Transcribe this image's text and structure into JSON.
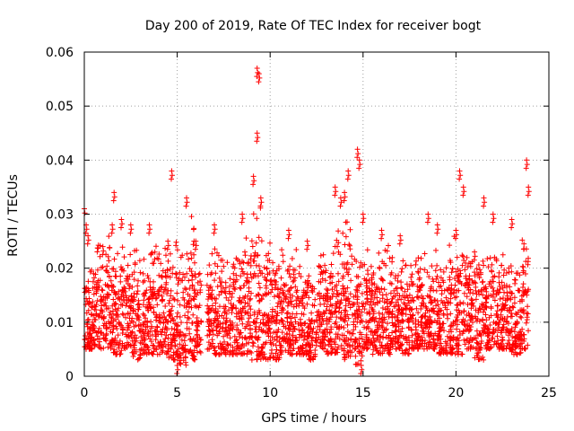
{
  "chart_data": {
    "type": "scatter",
    "title": "Day 200 of 2019, Rate Of TEC Index for receiver bogt",
    "xlabel": "GPS time / hours",
    "ylabel": "ROTI / TECUs",
    "xlim": [
      0,
      25
    ],
    "ylim": [
      0,
      0.06
    ],
    "x_ticks": [
      "0",
      "5",
      "10",
      "15",
      "20",
      "25"
    ],
    "y_ticks": [
      "0",
      "0.01",
      "0.02",
      "0.03",
      "0.04",
      "0.05",
      "0.06"
    ],
    "grid": true,
    "marker": "plus",
    "color": "#ff0000",
    "series": [
      {
        "approx_points": [
          [
            0.0,
            0.031
          ],
          [
            0.1,
            0.028
          ],
          [
            0.2,
            0.026
          ],
          [
            0.3,
            0.007
          ],
          [
            0.5,
            0.019
          ],
          [
            1.0,
            0.024
          ],
          [
            1.5,
            0.028
          ],
          [
            1.6,
            0.034
          ],
          [
            2.0,
            0.029
          ],
          [
            2.5,
            0.028
          ],
          [
            3.5,
            0.028
          ],
          [
            4.5,
            0.025
          ],
          [
            4.7,
            0.038
          ],
          [
            5.0,
            0.002
          ],
          [
            5.5,
            0.033
          ],
          [
            6.0,
            0.025
          ],
          [
            7.0,
            0.028
          ],
          [
            8.5,
            0.03
          ],
          [
            9.1,
            0.037
          ],
          [
            9.3,
            0.057
          ],
          [
            9.4,
            0.056
          ],
          [
            9.3,
            0.045
          ],
          [
            9.5,
            0.033
          ],
          [
            11.0,
            0.027
          ],
          [
            12.0,
            0.025
          ],
          [
            13.5,
            0.035
          ],
          [
            13.8,
            0.033
          ],
          [
            14.0,
            0.034
          ],
          [
            14.2,
            0.038
          ],
          [
            14.7,
            0.042
          ],
          [
            14.8,
            0.04
          ],
          [
            14.9,
            0.002
          ],
          [
            15.0,
            0.03
          ],
          [
            16.0,
            0.027
          ],
          [
            17.0,
            0.026
          ],
          [
            18.5,
            0.03
          ],
          [
            19.0,
            0.028
          ],
          [
            20.0,
            0.027
          ],
          [
            20.2,
            0.038
          ],
          [
            20.4,
            0.035
          ],
          [
            21.0,
            0.023
          ],
          [
            21.5,
            0.033
          ],
          [
            22.0,
            0.03
          ],
          [
            23.0,
            0.029
          ],
          [
            23.8,
            0.04
          ],
          [
            23.9,
            0.035
          ]
        ],
        "segments": [
          [
            0.0,
            0.5,
            0.005,
            0.022
          ],
          [
            0.5,
            1.0,
            0.005,
            0.026
          ],
          [
            1.0,
            1.5,
            0.005,
            0.027
          ],
          [
            1.5,
            2.0,
            0.004,
            0.026
          ],
          [
            2.0,
            2.5,
            0.005,
            0.027
          ],
          [
            2.5,
            3.0,
            0.003,
            0.026
          ],
          [
            3.0,
            3.5,
            0.004,
            0.022
          ],
          [
            3.5,
            4.0,
            0.004,
            0.027
          ],
          [
            4.0,
            4.5,
            0.004,
            0.026
          ],
          [
            4.5,
            5.0,
            0.003,
            0.026
          ],
          [
            5.0,
            5.5,
            0.002,
            0.025
          ],
          [
            5.5,
            6.0,
            0.003,
            0.031
          ],
          [
            6.0,
            6.3,
            0.004,
            0.02
          ],
          [
            6.6,
            7.0,
            0.005,
            0.024
          ],
          [
            7.0,
            7.5,
            0.004,
            0.025
          ],
          [
            7.5,
            8.0,
            0.004,
            0.022
          ],
          [
            8.0,
            8.5,
            0.004,
            0.026
          ],
          [
            8.5,
            9.0,
            0.004,
            0.029
          ],
          [
            9.0,
            9.5,
            0.003,
            0.034
          ],
          [
            9.5,
            10.0,
            0.003,
            0.03
          ],
          [
            10.0,
            10.5,
            0.003,
            0.024
          ],
          [
            10.5,
            11.0,
            0.004,
            0.024
          ],
          [
            11.0,
            11.5,
            0.004,
            0.024
          ],
          [
            11.5,
            12.0,
            0.004,
            0.022
          ],
          [
            12.0,
            12.5,
            0.003,
            0.022
          ],
          [
            12.5,
            13.0,
            0.005,
            0.026
          ],
          [
            13.0,
            13.5,
            0.004,
            0.027
          ],
          [
            13.5,
            14.0,
            0.004,
            0.029
          ],
          [
            14.0,
            14.5,
            0.003,
            0.03
          ],
          [
            14.5,
            15.0,
            0.002,
            0.027
          ],
          [
            15.0,
            15.5,
            0.005,
            0.024
          ],
          [
            15.5,
            16.0,
            0.004,
            0.025
          ],
          [
            16.0,
            16.5,
            0.004,
            0.026
          ],
          [
            16.5,
            17.0,
            0.005,
            0.025
          ],
          [
            17.0,
            17.5,
            0.004,
            0.024
          ],
          [
            17.5,
            18.0,
            0.005,
            0.025
          ],
          [
            18.0,
            18.5,
            0.005,
            0.024
          ],
          [
            18.5,
            19.0,
            0.005,
            0.026
          ],
          [
            19.0,
            19.5,
            0.004,
            0.022
          ],
          [
            19.5,
            20.0,
            0.004,
            0.027
          ],
          [
            20.0,
            20.5,
            0.004,
            0.028
          ],
          [
            20.5,
            21.0,
            0.005,
            0.025
          ],
          [
            21.0,
            21.5,
            0.003,
            0.024
          ],
          [
            21.5,
            22.0,
            0.005,
            0.024
          ],
          [
            22.0,
            22.5,
            0.005,
            0.024
          ],
          [
            22.5,
            23.0,
            0.005,
            0.023
          ],
          [
            23.0,
            23.5,
            0.004,
            0.022
          ],
          [
            23.5,
            23.9,
            0.005,
            0.028
          ]
        ]
      }
    ]
  }
}
